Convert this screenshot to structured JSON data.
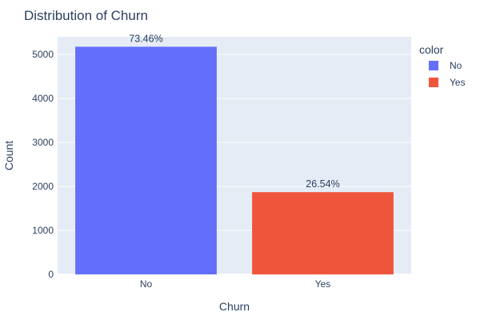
{
  "chart_data": {
    "type": "bar",
    "title": "Distribution of Churn",
    "xlabel": "Churn",
    "ylabel": "Count",
    "categories": [
      "No",
      "Yes"
    ],
    "values": [
      5174,
      1869
    ],
    "data_labels": [
      "73.46%",
      "26.54%"
    ],
    "colors": [
      "#636efa",
      "#ef553b"
    ],
    "ylim": [
      0,
      5400
    ],
    "yticks": [
      0,
      1000,
      2000,
      3000,
      4000,
      5000
    ],
    "ytick_labels": [
      "0",
      "1000",
      "2000",
      "3000",
      "4000",
      "5000"
    ],
    "grid": true,
    "legend": {
      "title": "color",
      "position": "right",
      "entries": [
        {
          "label": "No",
          "color": "#636efa"
        },
        {
          "label": "Yes",
          "color": "#ef553b"
        }
      ]
    },
    "plot_background": "#e5ecf6",
    "gridline_color": "#ffffff"
  }
}
